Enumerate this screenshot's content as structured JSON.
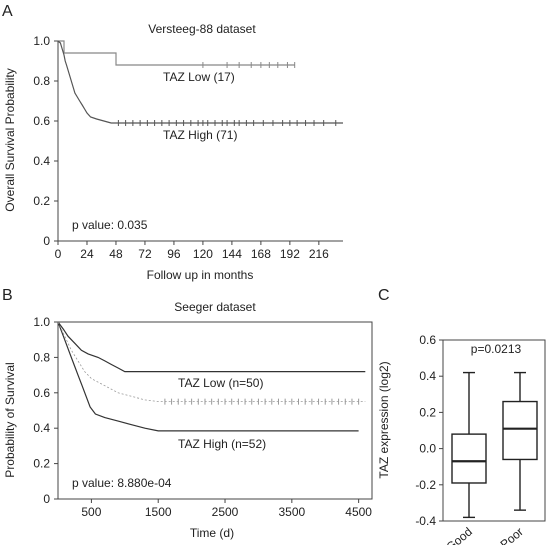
{
  "panel_labels": {
    "a": "A",
    "b": "B",
    "c": "C"
  },
  "chart_data": [
    {
      "type": "line",
      "title": "Versteeg-88 dataset",
      "xlabel": "Follow up in months",
      "ylabel": "Overall Survival Probability",
      "xlim": [
        0,
        236
      ],
      "ylim": [
        0,
        1.0
      ],
      "xticks": [
        "0",
        "24",
        "48",
        "72",
        "96",
        "120",
        "144",
        "168",
        "192",
        "216"
      ],
      "yticks": [
        "0",
        "0.2",
        "0.4",
        "0.6",
        "0.8",
        "1.0"
      ],
      "annotation": "p value: 0.035",
      "series": [
        {
          "name": "TAZ Low (17)",
          "color": "#888888",
          "points": [
            [
              0,
              1.0
            ],
            [
              5,
              1.0
            ],
            [
              5,
              0.94
            ],
            [
              48,
              0.94
            ],
            [
              48,
              0.88
            ],
            [
              196,
              0.88
            ]
          ],
          "censor_x": [
            120,
            140,
            150,
            160,
            168,
            175,
            182,
            190,
            196
          ]
        },
        {
          "name": "TAZ High (71)",
          "color": "#555555",
          "points": [
            [
              0,
              1.0
            ],
            [
              2,
              0.99
            ],
            [
              3,
              0.97
            ],
            [
              4,
              0.95
            ],
            [
              5,
              0.93
            ],
            [
              6,
              0.9
            ],
            [
              7,
              0.88
            ],
            [
              8,
              0.86
            ],
            [
              9,
              0.84
            ],
            [
              10,
              0.82
            ],
            [
              11,
              0.8
            ],
            [
              12,
              0.78
            ],
            [
              13,
              0.76
            ],
            [
              14,
              0.74
            ],
            [
              16,
              0.72
            ],
            [
              18,
              0.7
            ],
            [
              20,
              0.68
            ],
            [
              22,
              0.66
            ],
            [
              24,
              0.64
            ],
            [
              27,
              0.62
            ],
            [
              32,
              0.61
            ],
            [
              38,
              0.6
            ],
            [
              44,
              0.59
            ],
            [
              236,
              0.59
            ]
          ],
          "censor_x": [
            50,
            56,
            62,
            68,
            74,
            80,
            86,
            92,
            98,
            104,
            110,
            116,
            120,
            124,
            130,
            136,
            140,
            146,
            150,
            156,
            162,
            170,
            178,
            186,
            192,
            198,
            205,
            212,
            220,
            230
          ]
        }
      ]
    },
    {
      "type": "line",
      "title": "Seeger dataset",
      "xlabel": "Time (d)",
      "ylabel": "Probability of Survival",
      "xlim": [
        0,
        4700
      ],
      "ylim": [
        0,
        1.0
      ],
      "xticks": [
        "500",
        "1500",
        "2500",
        "3500",
        "4500"
      ],
      "yticks": [
        "0",
        "0.2",
        "0.4",
        "0.6",
        "0.8",
        "1.0"
      ],
      "annotation": "p value: 8.880e-04",
      "series": [
        {
          "name": "TAZ Low (n=50)",
          "color": "#333333",
          "points": [
            [
              0,
              1.0
            ],
            [
              80,
              0.96
            ],
            [
              150,
              0.92
            ],
            [
              250,
              0.88
            ],
            [
              350,
              0.84
            ],
            [
              450,
              0.82
            ],
            [
              600,
              0.8
            ],
            [
              700,
              0.78
            ],
            [
              800,
              0.76
            ],
            [
              900,
              0.74
            ],
            [
              1000,
              0.72
            ],
            [
              4600,
              0.72
            ]
          ],
          "censor_x": []
        },
        {
          "name": "TAZ High (n=52)",
          "color": "#333333",
          "points": [
            [
              0,
              1.0
            ],
            [
              60,
              0.94
            ],
            [
              120,
              0.88
            ],
            [
              180,
              0.82
            ],
            [
              240,
              0.76
            ],
            [
              300,
              0.7
            ],
            [
              360,
              0.64
            ],
            [
              420,
              0.58
            ],
            [
              480,
              0.52
            ],
            [
              560,
              0.48
            ],
            [
              700,
              0.46
            ],
            [
              900,
              0.44
            ],
            [
              1100,
              0.42
            ],
            [
              1300,
              0.4
            ],
            [
              1500,
              0.385
            ],
            [
              4500,
              0.385
            ]
          ],
          "censor_x": []
        },
        {
          "name": "",
          "color": "#999999",
          "dashed": true,
          "points": [
            [
              0,
              1.0
            ],
            [
              100,
              0.92
            ],
            [
              200,
              0.84
            ],
            [
              300,
              0.78
            ],
            [
              400,
              0.72
            ],
            [
              500,
              0.68
            ],
            [
              700,
              0.64
            ],
            [
              900,
              0.6
            ],
            [
              1100,
              0.58
            ],
            [
              1300,
              0.56
            ],
            [
              1500,
              0.55
            ],
            [
              4600,
              0.55
            ]
          ],
          "censor_x": [
            1600,
            1700,
            1800,
            1900,
            2000,
            2100,
            2200,
            2300,
            2400,
            2500,
            2600,
            2700,
            2800,
            2900,
            3000,
            3100,
            3200,
            3300,
            3400,
            3500,
            3600,
            3700,
            3800,
            3900,
            4000,
            4100,
            4200,
            4300,
            4400,
            4500
          ]
        }
      ]
    },
    {
      "type": "box",
      "ylabel": "TAZ expression (log2)",
      "ylim": [
        -0.4,
        0.6
      ],
      "yticks": [
        "-0.4",
        "-0.2",
        "0.0",
        "0.2",
        "0.4",
        "0.6"
      ],
      "annotation": "p=0.0213",
      "categories": [
        "Good",
        "Poor"
      ],
      "boxes": [
        {
          "min": -0.38,
          "q1": -0.19,
          "median": -0.07,
          "q3": 0.08,
          "max": 0.42
        },
        {
          "min": -0.34,
          "q1": -0.06,
          "median": 0.11,
          "q3": 0.26,
          "max": 0.42
        }
      ]
    }
  ]
}
